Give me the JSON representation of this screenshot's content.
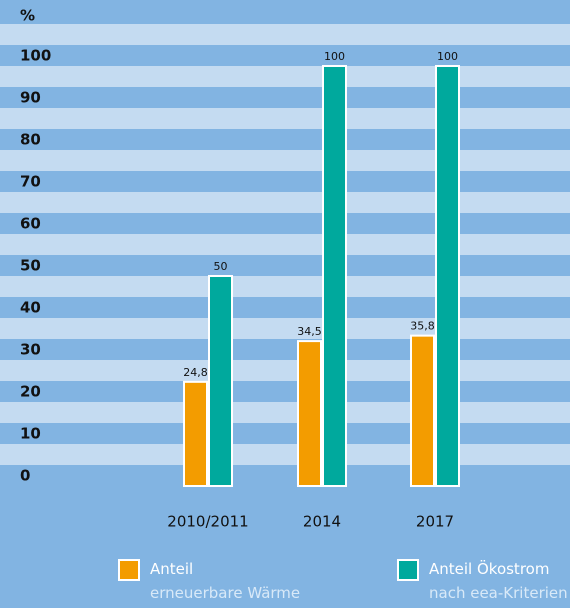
{
  "chart_data": {
    "type": "bar",
    "ylabel": "%",
    "categories": [
      "2010/2011",
      "2014",
      "2017"
    ],
    "series": [
      {
        "name": "Anteil\nerneuerbare Wärme",
        "color": "#f39c00",
        "values": [
          24.8,
          34.5,
          35.8
        ],
        "value_labels": [
          "24,8",
          "34,5",
          "35,8"
        ]
      },
      {
        "name": "Anteil Ökostrom\nnach eea-Kriterien",
        "color": "#00a99d",
        "values": [
          50,
          100,
          100
        ],
        "value_labels": [
          "50",
          "100",
          "100"
        ]
      }
    ],
    "ylim": [
      0,
      100
    ],
    "yticks": [
      0,
      10,
      20,
      30,
      40,
      50,
      60,
      70,
      80,
      90,
      100
    ],
    "grid": false
  }
}
